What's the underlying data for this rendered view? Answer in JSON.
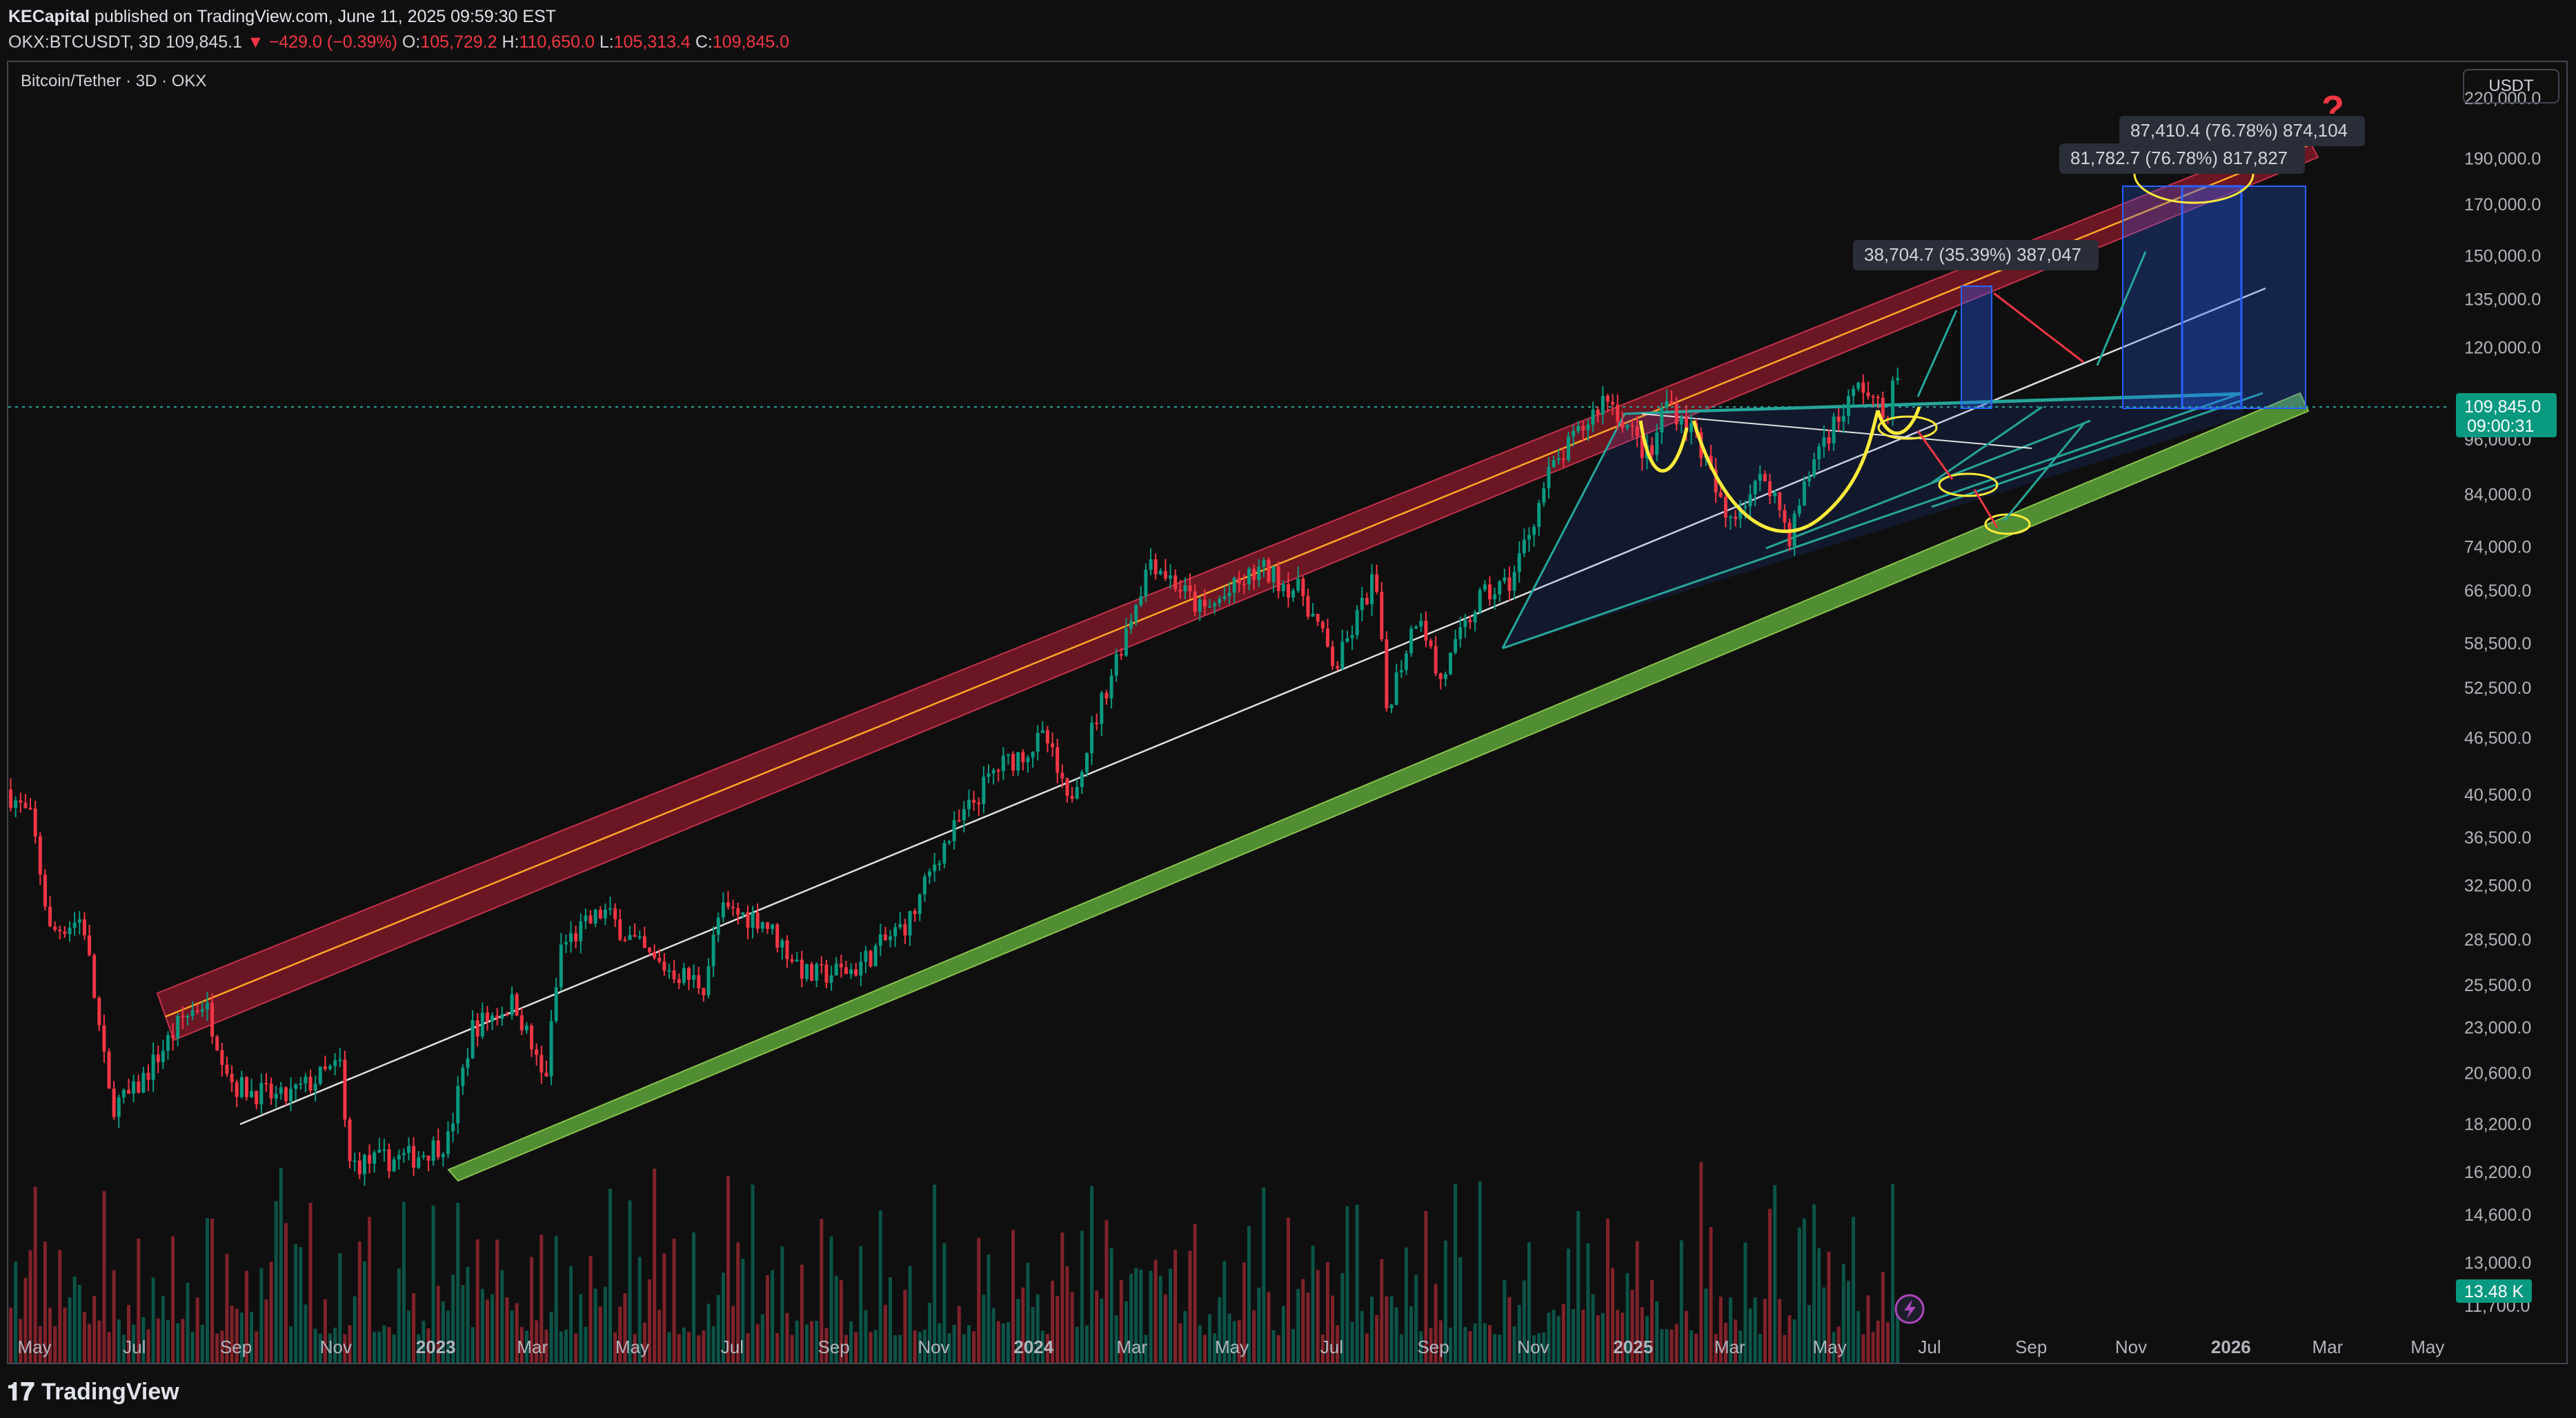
{
  "header": {
    "author": "KECapital",
    "published": "published on TradingView.com, June 11, 2025 09:59:30 EST",
    "symbol": "OKX:BTCUSDT, 3D",
    "last": "109,845.1",
    "change": "−429.0 (−0.39%)",
    "o_label": "O:",
    "o": "105,729.2",
    "h_label": "H:",
    "h": "110,650.0",
    "l_label": "L:",
    "l": "105,313.4",
    "c_label": "C:",
    "c": "109,845.0"
  },
  "chart_title": "Bitcoin/Tether · 3D · OKX",
  "currency": "USDT",
  "footer": {
    "brand": "TradingView"
  },
  "colors": {
    "bg": "#0f0f0f",
    "up": "#089981",
    "down": "#f23645",
    "resistance": "#8b1a2b",
    "support": "#4a8c2a",
    "pattern": "#ffeb3b",
    "accent": "#2962ff"
  },
  "chart_data": {
    "type": "candlestick",
    "yscale": "log",
    "ylim": [
      11000,
      240000
    ],
    "xlim": [
      "2022-04-15",
      "2026-05-15"
    ],
    "yticks": [
      {
        "v": 220000,
        "label": "220,000.0"
      },
      {
        "v": 190000,
        "label": "190,000.0"
      },
      {
        "v": 170000,
        "label": "170,000.0"
      },
      {
        "v": 150000,
        "label": "150,000.0"
      },
      {
        "v": 135000,
        "label": "135,000.0"
      },
      {
        "v": 120000,
        "label": "120,000.0"
      },
      {
        "v": 96000,
        "label": "96,000.0"
      },
      {
        "v": 84000,
        "label": "84,000.0"
      },
      {
        "v": 74000,
        "label": "74,000.0"
      },
      {
        "v": 66500,
        "label": "66,500.0"
      },
      {
        "v": 58500,
        "label": "58,500.0"
      },
      {
        "v": 52500,
        "label": "52,500.0"
      },
      {
        "v": 46500,
        "label": "46,500.0"
      },
      {
        "v": 40500,
        "label": "40,500.0"
      },
      {
        "v": 36500,
        "label": "36,500.0"
      },
      {
        "v": 32500,
        "label": "32,500.0"
      },
      {
        "v": 28500,
        "label": "28,500.0"
      },
      {
        "v": 25500,
        "label": "25,500.0"
      },
      {
        "v": 23000,
        "label": "23,000.0"
      },
      {
        "v": 20600,
        "label": "20,600.0"
      },
      {
        "v": 18200,
        "label": "18,200.0"
      },
      {
        "v": 16200,
        "label": "16,200.0"
      },
      {
        "v": 14600,
        "label": "14,600.0"
      },
      {
        "v": 13000,
        "label": "13,000.0"
      },
      {
        "v": 11700,
        "label": "11,700.0"
      }
    ],
    "xticks": [
      {
        "t": "2022-05-01",
        "label": "May",
        "bold": false
      },
      {
        "t": "2022-07-01",
        "label": "Jul",
        "bold": false
      },
      {
        "t": "2022-09-01",
        "label": "Sep",
        "bold": false
      },
      {
        "t": "2022-11-01",
        "label": "Nov",
        "bold": false
      },
      {
        "t": "2023-01-01",
        "label": "2023",
        "bold": true
      },
      {
        "t": "2023-03-01",
        "label": "Mar",
        "bold": false
      },
      {
        "t": "2023-05-01",
        "label": "May",
        "bold": false
      },
      {
        "t": "2023-07-01",
        "label": "Jul",
        "bold": false
      },
      {
        "t": "2023-09-01",
        "label": "Sep",
        "bold": false
      },
      {
        "t": "2023-11-01",
        "label": "Nov",
        "bold": false
      },
      {
        "t": "2024-01-01",
        "label": "2024",
        "bold": true
      },
      {
        "t": "2024-03-01",
        "label": "Mar",
        "bold": false
      },
      {
        "t": "2024-05-01",
        "label": "May",
        "bold": false
      },
      {
        "t": "2024-07-01",
        "label": "Jul",
        "bold": false
      },
      {
        "t": "2024-09-01",
        "label": "Sep",
        "bold": false
      },
      {
        "t": "2024-11-01",
        "label": "Nov",
        "bold": false
      },
      {
        "t": "2025-01-01",
        "label": "2025",
        "bold": true
      },
      {
        "t": "2025-03-01",
        "label": "Mar",
        "bold": false
      },
      {
        "t": "2025-05-01",
        "label": "May",
        "bold": false
      },
      {
        "t": "2025-07-01",
        "label": "Jul",
        "bold": false
      },
      {
        "t": "2025-09-01",
        "label": "Sep",
        "bold": false
      },
      {
        "t": "2025-11-01",
        "label": "Nov",
        "bold": false
      },
      {
        "t": "2026-01-01",
        "label": "2026",
        "bold": true
      },
      {
        "t": "2026-03-01",
        "label": "Mar",
        "bold": false
      },
      {
        "t": "2026-05-01",
        "label": "May",
        "bold": false
      }
    ],
    "price_path": [
      [
        "2022-04-15",
        41000
      ],
      [
        "2022-05-01",
        38000
      ],
      [
        "2022-05-12",
        29000
      ],
      [
        "2022-06-01",
        30000
      ],
      [
        "2022-06-18",
        19000
      ],
      [
        "2022-07-01",
        19500
      ],
      [
        "2022-08-01",
        23500
      ],
      [
        "2022-08-14",
        24500
      ],
      [
        "2022-09-01",
        20000
      ],
      [
        "2022-10-01",
        19300
      ],
      [
        "2022-11-05",
        21000
      ],
      [
        "2022-11-10",
        16500
      ],
      [
        "2022-12-20",
        16800
      ],
      [
        "2023-01-10",
        17500
      ],
      [
        "2023-01-25",
        23000
      ],
      [
        "2023-02-20",
        24500
      ],
      [
        "2023-03-10",
        20000
      ],
      [
        "2023-03-20",
        28000
      ],
      [
        "2023-04-15",
        30500
      ],
      [
        "2023-05-15",
        27000
      ],
      [
        "2023-06-15",
        25500
      ],
      [
        "2023-06-25",
        30500
      ],
      [
        "2023-07-20",
        30000
      ],
      [
        "2023-08-18",
        26000
      ],
      [
        "2023-09-15",
        26500
      ],
      [
        "2023-10-20",
        30000
      ],
      [
        "2023-11-05",
        35000
      ],
      [
        "2023-12-10",
        43000
      ],
      [
        "2024-01-10",
        46500
      ],
      [
        "2024-01-23",
        39500
      ],
      [
        "2024-02-15",
        52000
      ],
      [
        "2024-03-14",
        72000
      ],
      [
        "2024-04-15",
        63000
      ],
      [
        "2024-05-20",
        70000
      ],
      [
        "2024-06-15",
        66000
      ],
      [
        "2024-07-05",
        55000
      ],
      [
        "2024-07-29",
        69000
      ],
      [
        "2024-08-05",
        50000
      ],
      [
        "2024-08-25",
        64000
      ],
      [
        "2024-09-06",
        53000
      ],
      [
        "2024-09-30",
        65000
      ],
      [
        "2024-10-20",
        68000
      ],
      [
        "2024-11-12",
        88000
      ],
      [
        "2024-12-05",
        100000
      ],
      [
        "2024-12-17",
        107000
      ],
      [
        "2025-01-13",
        91000
      ],
      [
        "2025-01-22",
        106000
      ],
      [
        "2025-02-10",
        97000
      ],
      [
        "2025-02-28",
        79000
      ],
      [
        "2025-03-25",
        88000
      ],
      [
        "2025-04-08",
        76000
      ],
      [
        "2025-04-25",
        94000
      ],
      [
        "2025-05-22",
        110000
      ],
      [
        "2025-06-05",
        101000
      ],
      [
        "2025-06-11",
        109845
      ]
    ],
    "annotations": [
      {
        "label": "87,410.4 (76.78%) 874,104"
      },
      {
        "label": "81,782.7 (76.78%) 817,827"
      },
      {
        "label": "38,704.7 (35.39%) 387,047"
      },
      {
        "label": "?"
      }
    ],
    "price_labels": {
      "last": "109,845.0",
      "countdown": "09:00:31",
      "volume": "13.48 K"
    }
  }
}
